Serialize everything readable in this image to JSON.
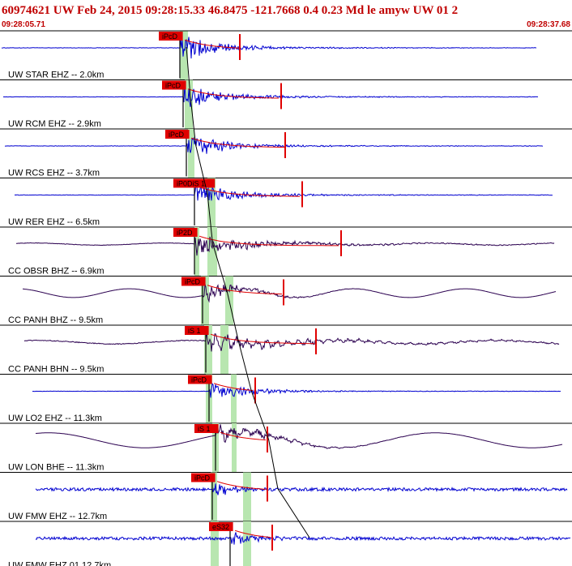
{
  "header": {
    "title": "60974621 UW Feb 24, 2015 09:28:15.33   46.8475 -121.7668  0.4 0.23 Md le amyw UW 01   2",
    "start_time": "09:28:05.71",
    "end_time": "09:28:37.68"
  },
  "colors": {
    "title": "#c00000",
    "blue_trace": "#0000d0",
    "purple_trace": "#2b0050",
    "pick_red": "#e00000",
    "window_green": "#b8e6b0",
    "separator": "#000000"
  },
  "traces": [
    {
      "label": "UW STAR EHZ -- 2.0km",
      "pick": "iPcD",
      "color": "blue",
      "kind": "hf",
      "amp": 0.55
    },
    {
      "label": "UW RCM EHZ -- 2.9km",
      "pick": "iPcD",
      "color": "blue",
      "kind": "hf",
      "amp": 0.5
    },
    {
      "label": "UW RCS EHZ -- 3.7km",
      "pick": "iPcD",
      "color": "blue",
      "kind": "hf",
      "amp": 0.5
    },
    {
      "label": "UW RER EHZ -- 6.5km",
      "pick": "iP0DiS 1",
      "color": "blue",
      "kind": "hf",
      "amp": 0.5
    },
    {
      "label": "CC OBSR BHZ -- 6.9km",
      "pick": "iP2D",
      "color": "purple",
      "kind": "bb",
      "amp": 0.45
    },
    {
      "label": "CC PANH BHZ -- 9.5km",
      "pick": "iPcD",
      "color": "purple",
      "kind": "lp",
      "amp": 0.5
    },
    {
      "label": "CC PANH BHN -- 9.5km",
      "pick": "iS 1",
      "color": "purple",
      "kind": "lp2",
      "amp": 0.45
    },
    {
      "label": "UW LO2 EHZ -- 11.3km",
      "pick": "iPcD",
      "color": "blue",
      "kind": "hf",
      "amp": 0.4
    },
    {
      "label": "UW LON BHE -- 11.3km",
      "pick": "iS 1",
      "color": "purple",
      "kind": "lp3",
      "amp": 0.55
    },
    {
      "label": "UW FMW EHZ -- 12.7km",
      "pick": "iPcD",
      "color": "blue",
      "kind": "noise",
      "amp": 0.45
    },
    {
      "label": "UW FMW EHZ 01 12.7km",
      "pick": "eS32",
      "color": "blue",
      "kind": "noise",
      "amp": 0.45
    }
  ]
}
